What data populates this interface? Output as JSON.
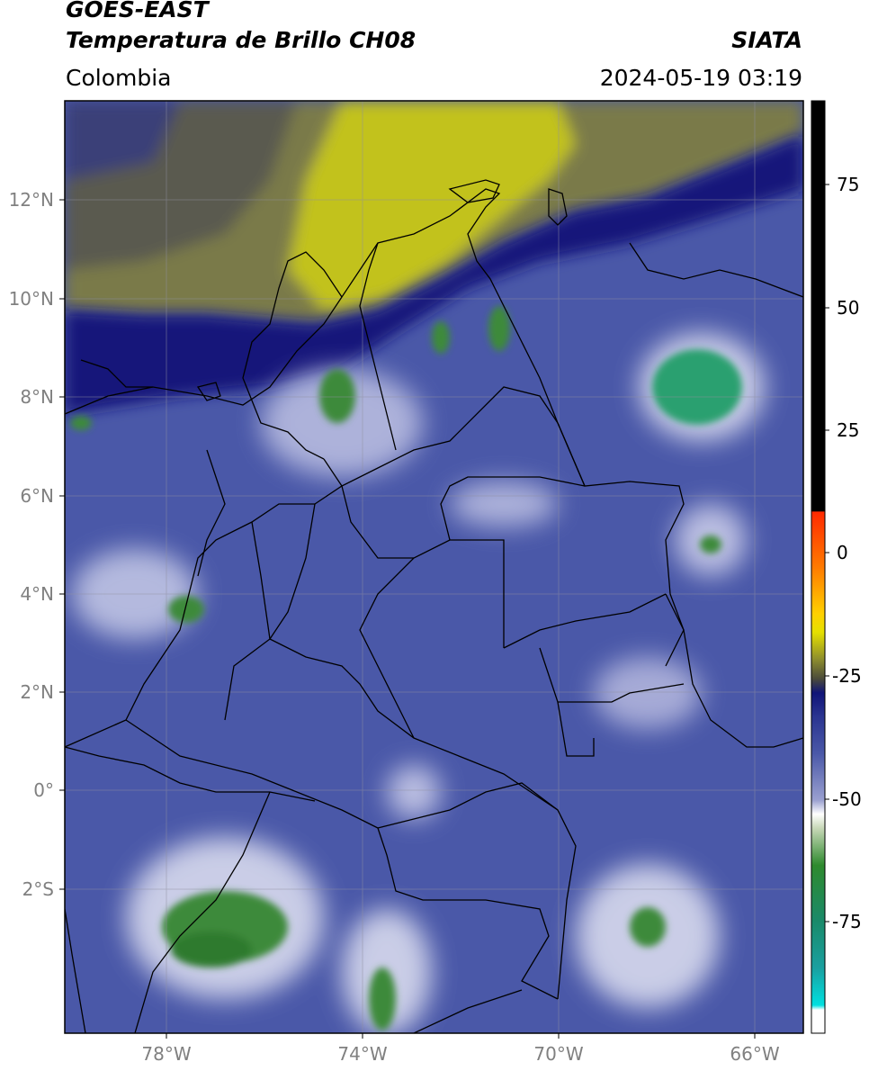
{
  "header": {
    "satellite": "GOES-EAST",
    "product": "Temperatura de Brillo CH08",
    "brand": "SIATA",
    "region": "Colombia",
    "datetime": "2024-05-19 03:19"
  },
  "axes": {
    "lat_ticks": [
      "12°N",
      "10°N",
      "8°N",
      "6°N",
      "4°N",
      "2°N",
      "0°",
      "2°S"
    ],
    "lat_values": [
      12,
      10,
      8,
      6,
      4,
      2,
      0,
      -2
    ],
    "lon_ticks": [
      "78°W",
      "74°W",
      "70°W",
      "66°W"
    ],
    "lon_values": [
      -78,
      -74,
      -70,
      -66
    ],
    "lat_range": [
      -5.2,
      14.0
    ],
    "lon_range": [
      -80.0,
      -65.0
    ],
    "grid": true
  },
  "colorbar": {
    "ticks": [
      "75",
      "50",
      "25",
      "0",
      "-25",
      "-50",
      "-75"
    ],
    "tick_values": [
      75,
      50,
      25,
      0,
      -25,
      -50,
      -75
    ],
    "range": [
      -100,
      90
    ],
    "unit_colors": {
      "warm_black": "#000000",
      "hot": "#ff2a00",
      "orange": "#ff9a00",
      "yellow": "#e5e000",
      "olive": "#6b6b2a",
      "navy": "#101478",
      "blue": "#3a4aa0",
      "lavender": "#9aa0d0",
      "white": "#ffffff",
      "green": "#2e8a2e",
      "teal": "#1aa080",
      "cyan": "#00e0e0"
    }
  },
  "map_colors": {
    "dry_yellow": "#c2c21e",
    "olive": "#7a7a48",
    "navy": "#14187a",
    "deep_blue": "#2a3490",
    "mid_blue": "#4a58a8",
    "cloud_white": "#e4e6f4",
    "cold_green": "#3e8a3a",
    "teal": "#2aa070"
  }
}
